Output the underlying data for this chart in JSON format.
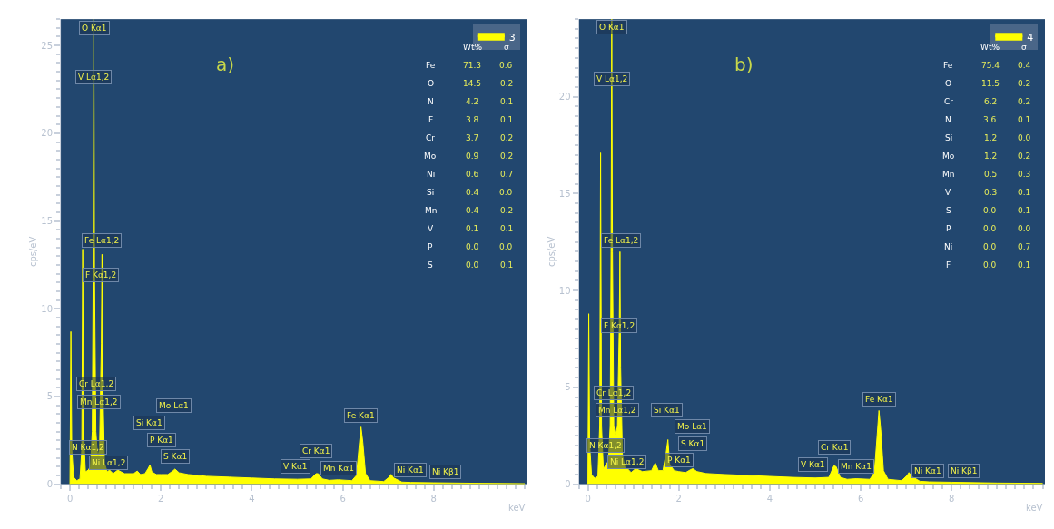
{
  "chart_data": [
    {
      "type": "area",
      "title": "a)",
      "xlabel": "keV",
      "ylabel": "cps/eV",
      "legend": "top right",
      "grid": false,
      "x": [
        0,
        0.02,
        0.04,
        0.08,
        0.15,
        0.22,
        0.26,
        0.28,
        0.3,
        0.34,
        0.4,
        0.45,
        0.49,
        0.51,
        0.525,
        0.54,
        0.57,
        0.61,
        0.65,
        0.69,
        0.705,
        0.72,
        0.76,
        0.82,
        0.87,
        0.95,
        1.05,
        1.2,
        1.4,
        1.48,
        1.55,
        1.65,
        1.72,
        1.76,
        1.8,
        1.9,
        2.0,
        2.15,
        2.26,
        2.31,
        2.4,
        2.6,
        3.0,
        3.5,
        4.0,
        4.5,
        5.0,
        5.3,
        5.41,
        5.46,
        5.55,
        5.7,
        5.9,
        6.2,
        6.3,
        6.36,
        6.4,
        6.44,
        6.5,
        6.6,
        6.9,
        7.02,
        7.06,
        7.12,
        7.3,
        7.5,
        8,
        9,
        10
      ],
      "series": [
        {
          "name": "3",
          "color": "#ffff00",
          "values": [
            0,
            8.7,
            2,
            0.4,
            0.2,
            0.3,
            2,
            13.4,
            3,
            0.7,
            0.8,
            1.0,
            3,
            12,
            26.5,
            12,
            3,
            1.5,
            2,
            8,
            13.1,
            6,
            1.2,
            0.7,
            0.8,
            0.6,
            0.8,
            0.6,
            0.6,
            0.75,
            0.55,
            0.6,
            0.9,
            1.1,
            0.7,
            0.55,
            0.55,
            0.55,
            0.75,
            0.86,
            0.65,
            0.55,
            0.45,
            0.4,
            0.35,
            0.3,
            0.28,
            0.3,
            0.6,
            0.6,
            0.3,
            0.22,
            0.25,
            0.2,
            0.5,
            2.2,
            3.26,
            2.4,
            0.6,
            0.2,
            0.15,
            0.4,
            0.56,
            0.35,
            0.12,
            0.1,
            0.08,
            0.05,
            0.03
          ]
        }
      ],
      "xlim": [
        -0.2,
        10.05
      ],
      "xticks": [
        0,
        2,
        4,
        6,
        8
      ],
      "ylim": [
        0,
        26.5
      ],
      "yticks": [
        0,
        5,
        10,
        15,
        20,
        25
      ],
      "annotations": [
        {
          "text": "O Kα1",
          "x": 0.53,
          "y": 26.0
        },
        {
          "text": "V Lα1,2",
          "x": 0.51,
          "y": 23.2
        },
        {
          "text": "Fe Lα1,2",
          "x": 0.7,
          "y": 13.9
        },
        {
          "text": "F Kα1,2",
          "x": 0.68,
          "y": 11.9
        },
        {
          "text": "Cr Lα1,2",
          "x": 0.57,
          "y": 5.7
        },
        {
          "text": "Mn Lα1,2",
          "x": 0.64,
          "y": 4.7
        },
        {
          "text": "N Kα1,2",
          "x": 0.39,
          "y": 2.1
        },
        {
          "text": "Ni Lα1,2",
          "x": 0.85,
          "y": 1.2
        },
        {
          "text": "Si Kα1",
          "x": 1.74,
          "y": 3.5
        },
        {
          "text": "Mo Lα1",
          "x": 2.29,
          "y": 4.5
        },
        {
          "text": "P Kα1",
          "x": 2.01,
          "y": 2.5
        },
        {
          "text": "S Kα1",
          "x": 2.31,
          "y": 1.6
        },
        {
          "text": "V Kα1",
          "x": 4.95,
          "y": 1.0
        },
        {
          "text": "Cr Kα1",
          "x": 5.41,
          "y": 1.9
        },
        {
          "text": "Mn Kα1",
          "x": 5.9,
          "y": 0.9
        },
        {
          "text": "Fe Kα1",
          "x": 6.4,
          "y": 3.9
        },
        {
          "text": "Ni Kα1",
          "x": 7.48,
          "y": 0.8
        },
        {
          "text": "Ni Kβ1",
          "x": 8.26,
          "y": 0.7
        },
        "Wt%",
        "σ",
        "Fe",
        "71.3",
        "0.6",
        "O",
        "14.5",
        "0.2",
        "N",
        "4.2",
        "0.1",
        "F",
        "3.8",
        "0.1",
        "Cr",
        "3.7",
        "0.2",
        "Mo",
        "0.9",
        "0.2",
        "Ni",
        "0.6",
        "0.7",
        "Si",
        "0.4",
        "0.0",
        "Mn",
        "0.4",
        "0.2",
        "V",
        "0.1",
        "0.1",
        "P",
        "0.0",
        "0.0",
        "S",
        "0.0",
        "0.1"
      ]
    },
    {
      "type": "area",
      "title": "b)",
      "xlabel": "keV",
      "ylabel": "cps/eV",
      "legend": "top right",
      "grid": false,
      "x": [
        0,
        0.02,
        0.04,
        0.08,
        0.15,
        0.22,
        0.26,
        0.28,
        0.3,
        0.34,
        0.4,
        0.45,
        0.49,
        0.51,
        0.525,
        0.54,
        0.57,
        0.61,
        0.65,
        0.69,
        0.705,
        0.72,
        0.76,
        0.82,
        0.87,
        0.95,
        1.05,
        1.2,
        1.4,
        1.48,
        1.55,
        1.65,
        1.72,
        1.76,
        1.8,
        1.9,
        2.0,
        2.15,
        2.26,
        2.31,
        2.4,
        2.6,
        3.0,
        3.5,
        4.0,
        4.5,
        5.0,
        5.3,
        5.41,
        5.46,
        5.55,
        5.7,
        5.9,
        6.2,
        6.3,
        6.36,
        6.4,
        6.44,
        6.5,
        6.6,
        6.9,
        7.02,
        7.06,
        7.12,
        7.3,
        7.5,
        8,
        9,
        10
      ],
      "series": [
        {
          "name": "4",
          "color": "#ffff00",
          "values": [
            0,
            8.8,
            2,
            0.5,
            0.3,
            0.4,
            3,
            17.1,
            3,
            0.8,
            1.0,
            1.2,
            3,
            12,
            24,
            12,
            3,
            2.5,
            3,
            8,
            12.0,
            6,
            1.5,
            0.8,
            0.8,
            0.6,
            0.8,
            0.65,
            0.7,
            1.1,
            0.7,
            0.7,
            1.6,
            2.3,
            1.0,
            0.7,
            0.65,
            0.6,
            0.75,
            0.8,
            0.65,
            0.55,
            0.5,
            0.45,
            0.4,
            0.35,
            0.32,
            0.35,
            0.95,
            0.9,
            0.35,
            0.25,
            0.28,
            0.25,
            0.6,
            2.5,
            3.8,
            2.8,
            0.7,
            0.25,
            0.18,
            0.45,
            0.6,
            0.4,
            0.15,
            0.12,
            0.1,
            0.06,
            0.04
          ]
        }
      ],
      "xlim": [
        -0.2,
        10.05
      ],
      "xticks": [
        0,
        2,
        4,
        6,
        8
      ],
      "ylim": [
        0,
        24
      ],
      "yticks": [
        0,
        5,
        10,
        15,
        20
      ],
      "annotations": [
        {
          "text": "O Kα1",
          "x": 0.53,
          "y": 23.6
        },
        {
          "text": "V Lα1,2",
          "x": 0.53,
          "y": 20.9
        },
        {
          "text": "Fe Lα1,2",
          "x": 0.72,
          "y": 12.6
        },
        {
          "text": "F Kα1,2",
          "x": 0.68,
          "y": 8.2
        },
        {
          "text": "Cr Lα1,2",
          "x": 0.57,
          "y": 4.7
        },
        {
          "text": "Mn Lα1,2",
          "x": 0.64,
          "y": 3.8
        },
        {
          "text": "N Kα1,2",
          "x": 0.39,
          "y": 2.0
        },
        {
          "text": "Ni Lα1,2",
          "x": 0.85,
          "y": 1.15
        },
        {
          "text": "Si Kα1",
          "x": 1.74,
          "y": 3.8
        },
        {
          "text": "Mo Lα1",
          "x": 2.29,
          "y": 3.0
        },
        {
          "text": "S Kα1",
          "x": 2.31,
          "y": 2.1
        },
        {
          "text": "P Kα1",
          "x": 2.01,
          "y": 1.25
        },
        {
          "text": "V Kα1",
          "x": 4.95,
          "y": 1.0
        },
        {
          "text": "Cr Kα1",
          "x": 5.41,
          "y": 1.9
        },
        {
          "text": "Mn Kα1",
          "x": 5.9,
          "y": 0.9
        },
        {
          "text": "Fe Kα1",
          "x": 6.4,
          "y": 4.4
        },
        {
          "text": "Ni Kα1",
          "x": 7.48,
          "y": 0.7
        },
        {
          "text": "Ni Kβ1",
          "x": 8.26,
          "y": 0.7
        },
        "Wt%",
        "σ",
        "Fe",
        "75.4",
        "0.4",
        "O",
        "11.5",
        "0.2",
        "Cr",
        "6.2",
        "0.2",
        "N",
        "3.6",
        "0.1",
        "Si",
        "1.2",
        "0.0",
        "Mo",
        "1.2",
        "0.2",
        "Mn",
        "0.5",
        "0.3",
        "V",
        "0.3",
        "0.1",
        "S",
        "0.0",
        "0.1",
        "P",
        "0.0",
        "0.0",
        "Ni",
        "0.0",
        "0.7",
        "F",
        "0.0",
        "0.1"
      ]
    }
  ]
}
